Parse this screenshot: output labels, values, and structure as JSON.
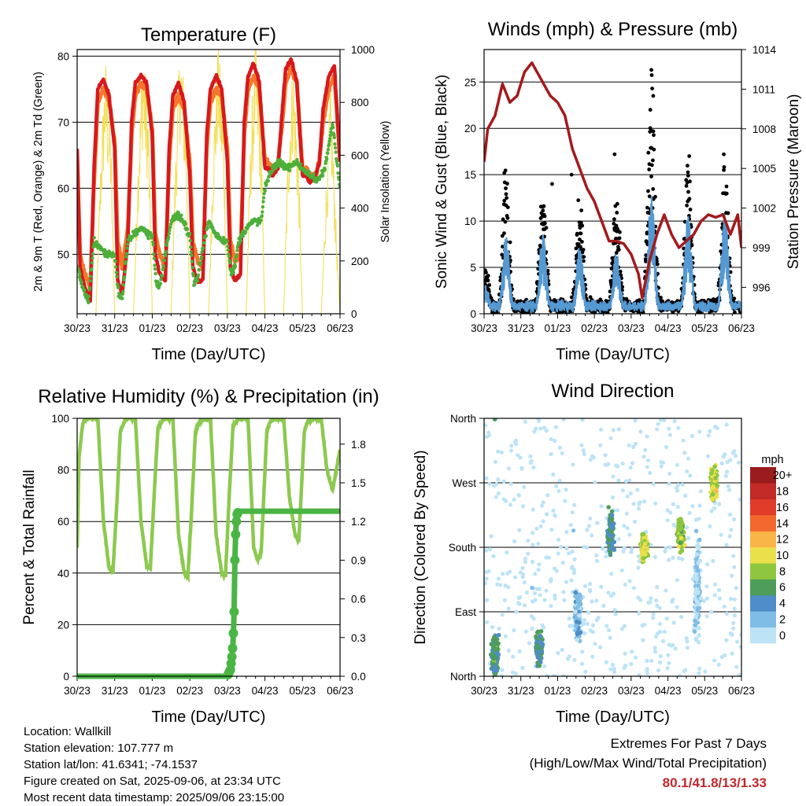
{
  "colors": {
    "temp_red": "#d7191c",
    "temp_orange": "#f4762b",
    "dewpoint_green": "#4daf3a",
    "solar_yellow": "#f2df5a",
    "gust_black": "#000000",
    "wind_blue": "#5499d2",
    "pressure_maroon": "#a31a1e",
    "rh_lightgreen": "#8cc94f",
    "rain_green": "#4ab544"
  },
  "footer": {
    "location": "Location: Wallkill",
    "elevation": "Station elevation: 107.777 m",
    "latlon": "Station lat/lon: 41.6341; -74.1537",
    "created": "Figure created on Sat, 2025-09-06, at 23:34 UTC",
    "timestamp": "Most recent data timestamp: 2025/09/06 23:15:00",
    "extremes_title": "Extremes For Past 7 Days",
    "extremes_sub": "(High/Low/Max Wind/Total Precipitation)",
    "extremes_values": "80.1/41.8/13/1.33"
  },
  "chart_data": [
    {
      "type": "line",
      "title": "Temperature (F)",
      "xlabel": "Time (Day/UTC)",
      "ylabel": "2m & 9m T (Red, Orange) & 2m Td (Green)",
      "ylabel_right": "Solar Insolation (Yellow)",
      "x_ticks": [
        "30/23",
        "31/23",
        "01/23",
        "02/23",
        "03/23",
        "04/23",
        "05/23",
        "06/23"
      ],
      "ylim": [
        41,
        81
      ],
      "y_ticks": [
        50,
        60,
        70,
        80
      ],
      "ylim_right": [
        0,
        1000
      ],
      "y_ticks_right": [
        0,
        200,
        400,
        600,
        800,
        1000
      ],
      "grid": true,
      "series": [
        {
          "key": "t2m",
          "axis": "left",
          "x": [
            0,
            0.08,
            0.2,
            0.35,
            0.45,
            0.55,
            0.7,
            0.85,
            1.0,
            1.08,
            1.2,
            1.35,
            1.45,
            1.55,
            1.7,
            1.85,
            2.0,
            2.08,
            2.2,
            2.35,
            2.45,
            2.55,
            2.7,
            2.85,
            3.0,
            3.08,
            3.2,
            3.35,
            3.45,
            3.55,
            3.7,
            3.85,
            4.0,
            4.08,
            4.2,
            4.35,
            4.45,
            4.55,
            4.7,
            4.85,
            5.0,
            5.08,
            5.2,
            5.35,
            5.45,
            5.55,
            5.7,
            5.85,
            6.0,
            6.08,
            6.2,
            6.35,
            6.45,
            6.55,
            6.7,
            6.85,
            7.0
          ],
          "y": [
            66,
            48,
            45,
            43,
            63,
            75,
            76.5,
            74,
            66,
            46,
            44,
            52,
            70,
            76,
            77,
            76,
            68,
            50,
            47,
            46,
            66,
            74,
            76,
            73,
            62,
            48,
            46,
            46,
            68,
            75,
            77,
            75,
            64,
            48,
            46,
            47,
            70,
            77,
            79,
            76,
            63,
            63,
            62,
            63,
            71,
            78,
            79.5,
            76,
            62,
            62,
            61,
            62,
            64,
            72,
            77,
            78.5,
            64
          ]
        },
        {
          "key": "t9m",
          "axis": "left",
          "x": [
            0,
            0.08,
            0.2,
            0.35,
            0.45,
            0.55,
            0.7,
            0.85,
            1.0,
            1.08,
            1.2,
            1.35,
            1.45,
            1.55,
            1.7,
            1.85,
            2.0,
            2.08,
            2.2,
            2.35,
            2.45,
            2.55,
            2.7,
            2.85,
            3.0,
            3.08,
            3.2,
            3.35,
            3.45,
            3.55,
            3.7,
            3.85,
            4.0,
            4.08,
            4.2,
            4.35,
            4.45,
            4.55,
            4.7,
            4.85,
            5.0,
            5.08,
            5.2,
            5.35,
            5.45,
            5.55,
            5.7,
            5.85,
            6.0,
            6.08,
            6.2,
            6.35,
            6.45,
            6.55,
            6.7,
            6.85,
            7.0
          ],
          "y": [
            65,
            50,
            47,
            45,
            61,
            73,
            75,
            73,
            67,
            52,
            48,
            54,
            68,
            74,
            76,
            75,
            69,
            53,
            50,
            48,
            64,
            72,
            74,
            72,
            64,
            52,
            49,
            48,
            66,
            73,
            75,
            74,
            66,
            52,
            49,
            50,
            68,
            75,
            77,
            75,
            64,
            64,
            63,
            64,
            69,
            76,
            78,
            76,
            63,
            63,
            62,
            62,
            64,
            70,
            75,
            77,
            64
          ]
        },
        {
          "key": "td2m",
          "axis": "left",
          "x": [
            0,
            0.1,
            0.2,
            0.3,
            0.45,
            0.6,
            0.8,
            1.0,
            1.1,
            1.2,
            1.35,
            1.5,
            1.7,
            1.9,
            2.0,
            2.1,
            2.2,
            2.35,
            2.5,
            2.7,
            2.9,
            3.0,
            3.1,
            3.2,
            3.35,
            3.5,
            3.7,
            3.9,
            4.0,
            4.1,
            4.2,
            4.3,
            4.5,
            4.7,
            4.9,
            5.0,
            5.2,
            5.4,
            5.6,
            5.8,
            6.0,
            6.2,
            6.4,
            6.6,
            6.8,
            7.0
          ],
          "y": [
            48,
            46,
            44,
            43,
            52,
            51,
            50,
            50,
            44,
            43,
            52,
            53,
            54,
            53,
            53,
            46,
            45,
            50,
            55,
            56,
            54,
            53,
            46,
            46,
            51,
            55,
            53,
            52,
            52,
            47,
            48,
            52,
            54,
            55,
            55,
            60,
            63,
            64,
            63,
            64,
            63,
            62,
            61,
            63,
            70,
            60
          ]
        },
        {
          "key": "solar",
          "axis": "right",
          "x": [
            0,
            0.25,
            0.5,
            0.62,
            0.75,
            0.9,
            1.0,
            1.25,
            1.5,
            1.62,
            1.75,
            1.9,
            2.0,
            2.25,
            2.5,
            2.62,
            2.75,
            2.9,
            3.0,
            3.25,
            3.5,
            3.62,
            3.75,
            3.9,
            4.0,
            4.25,
            4.5,
            4.62,
            4.75,
            4.9,
            5.0,
            5.25,
            5.5,
            5.62,
            5.75,
            5.9,
            6.0,
            6.25,
            6.5,
            6.62,
            6.75,
            6.9,
            7.0
          ],
          "y": [
            0,
            0,
            0,
            500,
            860,
            600,
            0,
            0,
            0,
            520,
            900,
            660,
            0,
            0,
            0,
            540,
            940,
            650,
            0,
            0,
            0,
            560,
            920,
            650,
            0,
            0,
            0,
            600,
            930,
            620,
            0,
            0,
            0,
            580,
            860,
            500,
            0,
            0,
            0,
            400,
            780,
            280,
            0
          ]
        }
      ]
    },
    {
      "type": "scatter",
      "title": "Winds (mph) & Pressure (mb)",
      "xlabel": "Time (Day/UTC)",
      "ylabel": "Sonic Wind & Gust (Blue, Black)",
      "ylabel_right": "Station Pressure (Maroon)",
      "x_ticks": [
        "30/23",
        "31/23",
        "01/23",
        "02/23",
        "03/23",
        "04/23",
        "05/23",
        "06/23"
      ],
      "ylim": [
        0,
        28.5
      ],
      "y_ticks": [
        0,
        5,
        10,
        15,
        20,
        25
      ],
      "ylim_right": [
        994,
        1014
      ],
      "y_ticks_right": [
        996,
        999,
        1002,
        1005,
        1008,
        1011,
        1014
      ],
      "grid": true,
      "wind_peaks": [
        {
          "x": 0.05,
          "gust": 5,
          "wind": 3
        },
        {
          "x": 0.6,
          "gust": 16,
          "wind": 9
        },
        {
          "x": 1.6,
          "gust": 14.5,
          "wind": 9
        },
        {
          "x": 2.6,
          "gust": 13.5,
          "wind": 7.5
        },
        {
          "x": 3.6,
          "gust": 14,
          "wind": 7
        },
        {
          "x": 4.55,
          "gust": 26.3,
          "wind": 13
        },
        {
          "x": 5.55,
          "gust": 18,
          "wind": 11
        },
        {
          "x": 6.55,
          "gust": 17,
          "wind": 11
        }
      ],
      "pressure": {
        "x": [
          0,
          0.1,
          0.3,
          0.5,
          0.7,
          0.9,
          1.1,
          1.3,
          1.5,
          1.6,
          1.8,
          2.0,
          2.2,
          2.4,
          2.6,
          2.8,
          3.0,
          3.2,
          3.4,
          3.6,
          3.8,
          4.0,
          4.2,
          4.3,
          4.5,
          4.7,
          4.9,
          5.1,
          5.3,
          5.5,
          5.7,
          5.9,
          6.1,
          6.3,
          6.5,
          6.7,
          6.9,
          7.0
        ],
        "y": [
          1005.5,
          1008,
          1009,
          1011.4,
          1010,
          1010.5,
          1012.3,
          1013,
          1012,
          1011.5,
          1010.5,
          1010,
          1009,
          1006.5,
          1005,
          1003.5,
          1002.5,
          1001,
          999.5,
          999.5,
          999.3,
          998.5,
          997,
          995.2,
          998,
          1000,
          1001.5,
          1000,
          999,
          999.5,
          1000,
          1001,
          1001.5,
          1001.3,
          1001.5,
          1000,
          1001.5,
          999
        ]
      }
    },
    {
      "type": "line",
      "title": "Relative Humidity (%) & Precipitation (in)",
      "xlabel": "Time (Day/UTC)",
      "ylabel": "Percent & Total Rainfall",
      "x_ticks": [
        "30/23",
        "31/23",
        "01/23",
        "02/23",
        "03/23",
        "04/23",
        "05/23",
        "06/23"
      ],
      "ylim": [
        0,
        100
      ],
      "y_ticks": [
        0,
        20,
        40,
        60,
        80,
        100
      ],
      "ylim_right": [
        0,
        2.0
      ],
      "y_ticks_right": [
        0.0,
        0.3,
        0.6,
        0.9,
        1.2,
        1.5,
        1.8
      ],
      "grid": true,
      "series": [
        {
          "key": "rh",
          "axis": "left",
          "x": [
            0,
            0.05,
            0.15,
            0.25,
            0.35,
            0.55,
            0.7,
            0.85,
            0.95,
            1.05,
            1.15,
            1.3,
            1.55,
            1.7,
            1.85,
            1.95,
            2.05,
            2.15,
            2.3,
            2.55,
            2.7,
            2.85,
            2.95,
            3.05,
            3.15,
            3.3,
            3.55,
            3.7,
            3.85,
            3.95,
            4.05,
            4.15,
            4.3,
            4.55,
            4.7,
            4.8,
            4.9,
            5.05,
            5.15,
            5.3,
            5.5,
            5.65,
            5.8,
            5.9,
            6.05,
            6.15,
            6.3,
            6.5,
            6.65,
            6.8,
            6.9,
            7.0
          ],
          "y": [
            50,
            85,
            98,
            100,
            100,
            100,
            60,
            42,
            40,
            65,
            95,
            100,
            100,
            60,
            43,
            42,
            70,
            96,
            100,
            100,
            55,
            40,
            39,
            65,
            95,
            100,
            100,
            55,
            40,
            39,
            70,
            97,
            100,
            100,
            50,
            45,
            48,
            95,
            99,
            100,
            100,
            70,
            55,
            52,
            95,
            99,
            100,
            100,
            80,
            72,
            80,
            88
          ]
        },
        {
          "key": "rain",
          "axis": "right",
          "x": [
            0,
            4.0,
            4.08,
            4.12,
            4.15,
            4.18,
            4.2,
            4.22,
            4.25,
            4.3,
            7.0
          ],
          "y": [
            0,
            0,
            0.05,
            0.15,
            0.25,
            0.5,
            0.9,
            1.1,
            1.25,
            1.28,
            1.28
          ]
        }
      ]
    },
    {
      "type": "scatter",
      "title": "Wind Direction",
      "xlabel": "Time (Day/UTC)",
      "ylabel": "Direction (Colored By Speed)",
      "x_ticks": [
        "30/23",
        "31/23",
        "01/23",
        "02/23",
        "03/23",
        "04/23",
        "05/23",
        "06/23"
      ],
      "y_ticks": [
        "North",
        "East",
        "South",
        "West",
        "North"
      ],
      "ylim": [
        0,
        360
      ],
      "grid": true,
      "colorbar": {
        "title": "mph",
        "labels": [
          "0",
          "2",
          "4",
          "6",
          "8",
          "10",
          "12",
          "14",
          "16",
          "18",
          "20+"
        ],
        "colors": [
          "#bde3f6",
          "#7fbde6",
          "#4e8dc7",
          "#4e9d5a",
          "#8ec63f",
          "#e9e04c",
          "#f9b547",
          "#f2682d",
          "#e13b2a",
          "#c12a26",
          "#9b1c1e"
        ]
      },
      "clusters": [
        {
          "x": 0.3,
          "dir": 30,
          "spread": 35,
          "speed": 6
        },
        {
          "x": 1.5,
          "dir": 40,
          "spread": 30,
          "speed": 6
        },
        {
          "x": 2.55,
          "dir": 90,
          "spread": 50,
          "speed": 3
        },
        {
          "x": 3.45,
          "dir": 200,
          "spread": 40,
          "speed": 6
        },
        {
          "x": 4.35,
          "dir": 180,
          "spread": 25,
          "speed": 10
        },
        {
          "x": 5.35,
          "dir": 200,
          "spread": 30,
          "speed": 9
        },
        {
          "x": 6.25,
          "dir": 270,
          "spread": 30,
          "speed": 10
        },
        {
          "x": 5.8,
          "dir": 120,
          "spread": 90,
          "speed": 2
        }
      ]
    }
  ]
}
